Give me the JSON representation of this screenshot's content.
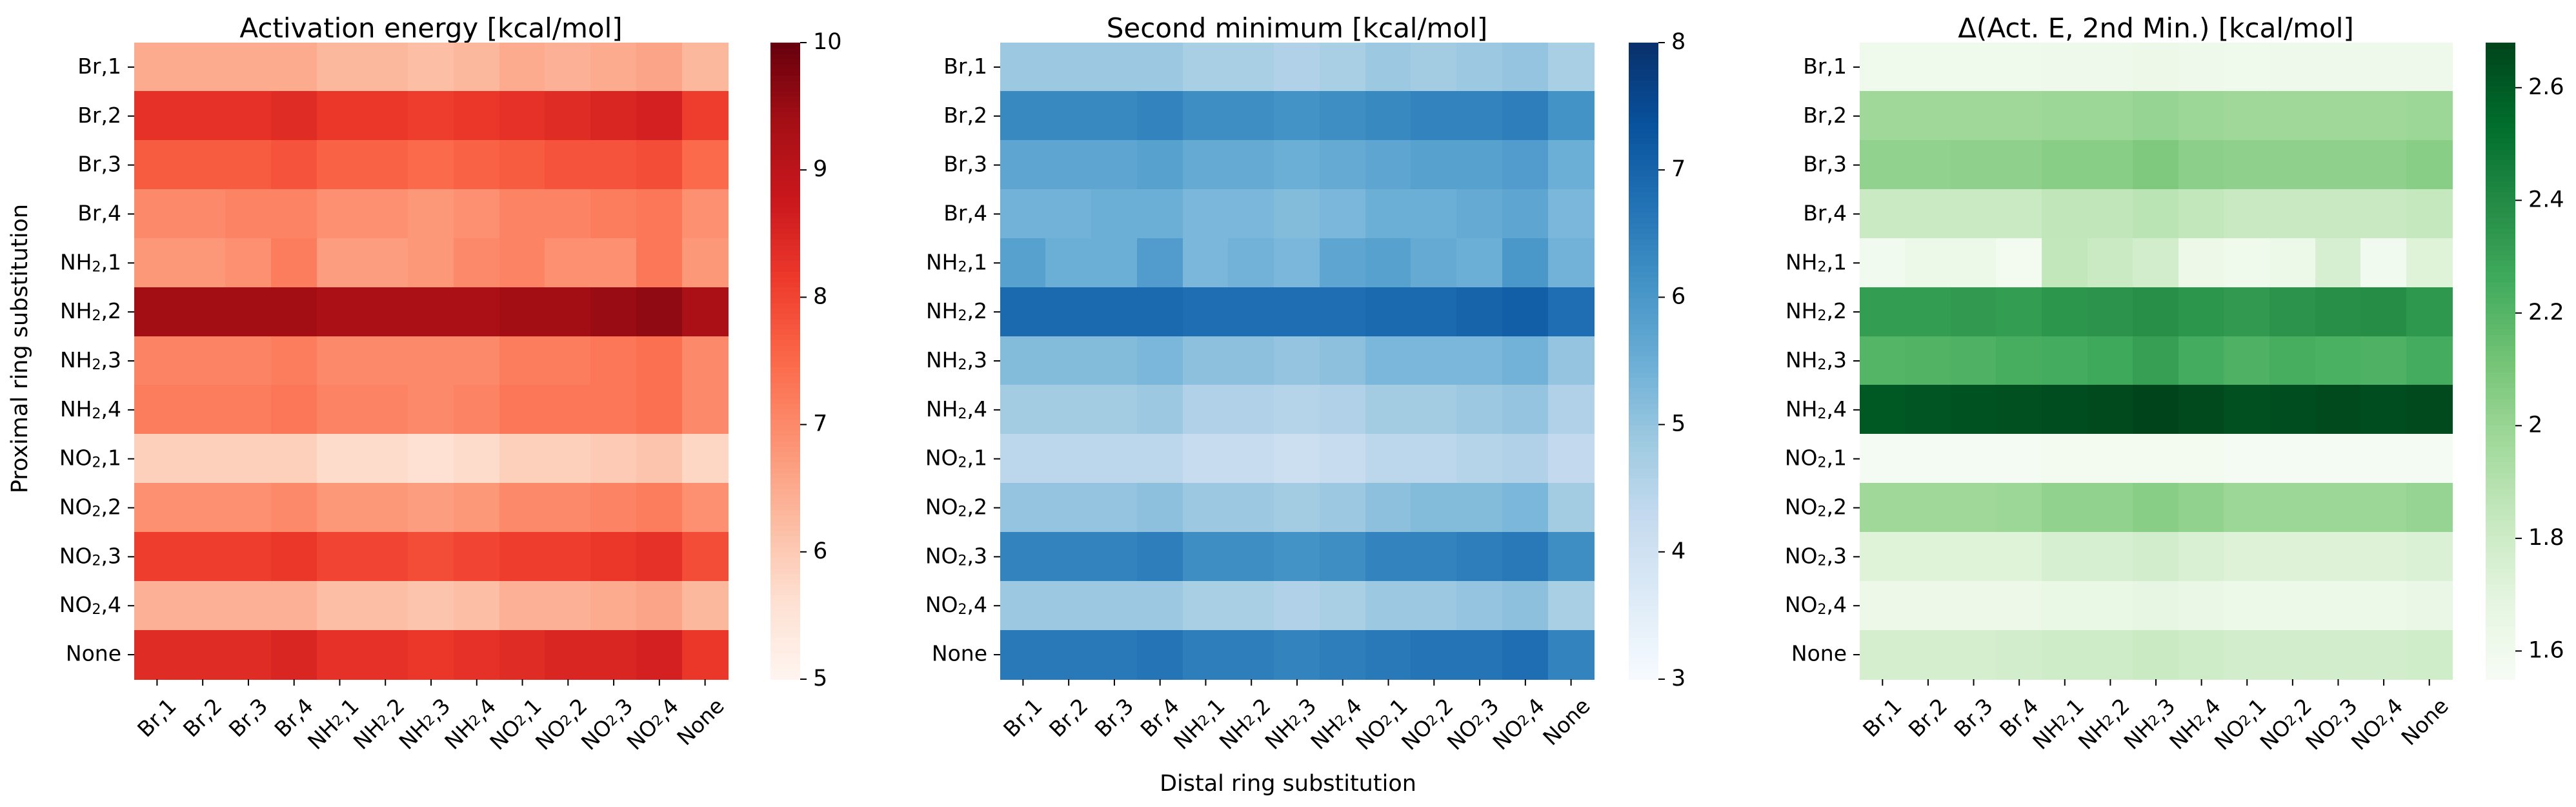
{
  "figure": {
    "ylabel": "Proximal ring substitution",
    "xlabel": "Distal ring substitution"
  },
  "chart_data": [
    {
      "type": "heatmap",
      "title": "Activation energy [kcal/mol]",
      "colormap": "Reds",
      "vlim": [
        5,
        10
      ],
      "colorbar_ticks": [
        5,
        6,
        7,
        8,
        9,
        10
      ],
      "row_labels": [
        {
          "base": "Br",
          "sub": "",
          "num": "1"
        },
        {
          "base": "Br",
          "sub": "",
          "num": "2"
        },
        {
          "base": "Br",
          "sub": "",
          "num": "3"
        },
        {
          "base": "Br",
          "sub": "",
          "num": "4"
        },
        {
          "base": "NH",
          "sub": "2",
          "num": "1"
        },
        {
          "base": "NH",
          "sub": "2",
          "num": "2"
        },
        {
          "base": "NH",
          "sub": "2",
          "num": "3"
        },
        {
          "base": "NH",
          "sub": "2",
          "num": "4"
        },
        {
          "base": "NO",
          "sub": "2",
          "num": "1"
        },
        {
          "base": "NO",
          "sub": "2",
          "num": "2"
        },
        {
          "base": "NO",
          "sub": "2",
          "num": "3"
        },
        {
          "base": "NO",
          "sub": "2",
          "num": "4"
        },
        {
          "base": "None",
          "sub": "",
          "num": ""
        }
      ],
      "col_labels": [
        {
          "base": "Br",
          "sub": "",
          "num": "1"
        },
        {
          "base": "Br",
          "sub": "",
          "num": "2"
        },
        {
          "base": "Br",
          "sub": "",
          "num": "3"
        },
        {
          "base": "Br",
          "sub": "",
          "num": "4"
        },
        {
          "base": "NH",
          "sub": "2",
          "num": "1"
        },
        {
          "base": "NH",
          "sub": "2",
          "num": "2"
        },
        {
          "base": "NH",
          "sub": "2",
          "num": "3"
        },
        {
          "base": "NH",
          "sub": "2",
          "num": "4"
        },
        {
          "base": "NO",
          "sub": "2",
          "num": "1"
        },
        {
          "base": "NO",
          "sub": "2",
          "num": "2"
        },
        {
          "base": "NO",
          "sub": "2",
          "num": "3"
        },
        {
          "base": "NO",
          "sub": "2",
          "num": "4"
        },
        {
          "base": "None",
          "sub": "",
          "num": ""
        }
      ],
      "values": [
        [
          6.5,
          6.5,
          6.5,
          6.5,
          6.3,
          6.3,
          6.2,
          6.3,
          6.5,
          6.4,
          6.5,
          6.6,
          6.3
        ],
        [
          8.3,
          8.3,
          8.3,
          8.4,
          8.2,
          8.2,
          8.1,
          8.2,
          8.3,
          8.4,
          8.5,
          8.6,
          8.1
        ],
        [
          7.7,
          7.7,
          7.7,
          7.8,
          7.6,
          7.6,
          7.5,
          7.6,
          7.7,
          7.8,
          7.8,
          7.9,
          7.5
        ],
        [
          7.0,
          7.0,
          7.1,
          7.1,
          6.9,
          6.9,
          6.8,
          6.9,
          7.1,
          7.1,
          7.2,
          7.3,
          6.9
        ],
        [
          6.8,
          6.8,
          6.9,
          7.2,
          6.7,
          6.7,
          6.8,
          7.0,
          7.1,
          6.9,
          6.9,
          7.3,
          6.8
        ],
        [
          9.4,
          9.4,
          9.4,
          9.4,
          9.3,
          9.3,
          9.3,
          9.3,
          9.4,
          9.4,
          9.5,
          9.6,
          9.3
        ],
        [
          7.1,
          7.1,
          7.1,
          7.2,
          7.0,
          7.0,
          7.0,
          7.0,
          7.2,
          7.2,
          7.3,
          7.4,
          7.0
        ],
        [
          7.2,
          7.2,
          7.2,
          7.3,
          7.1,
          7.1,
          7.0,
          7.1,
          7.3,
          7.3,
          7.3,
          7.4,
          7.0
        ],
        [
          5.9,
          5.9,
          5.9,
          5.9,
          5.7,
          5.7,
          5.6,
          5.7,
          5.9,
          5.9,
          6.0,
          6.1,
          5.8
        ],
        [
          6.9,
          6.9,
          6.9,
          7.0,
          6.8,
          6.8,
          6.7,
          6.8,
          7.0,
          7.0,
          7.1,
          7.2,
          6.9
        ],
        [
          8.1,
          8.1,
          8.1,
          8.2,
          8.0,
          8.0,
          7.9,
          8.0,
          8.1,
          8.1,
          8.2,
          8.3,
          7.9
        ],
        [
          6.4,
          6.4,
          6.4,
          6.4,
          6.2,
          6.2,
          6.1,
          6.2,
          6.4,
          6.4,
          6.5,
          6.6,
          6.3
        ],
        [
          8.4,
          8.4,
          8.4,
          8.5,
          8.3,
          8.3,
          8.2,
          8.3,
          8.4,
          8.5,
          8.5,
          8.6,
          8.2
        ]
      ]
    },
    {
      "type": "heatmap",
      "title": "Second minimum [kcal/mol]",
      "colormap": "Blues",
      "vlim": [
        3,
        8
      ],
      "colorbar_ticks": [
        3,
        4,
        5,
        6,
        7,
        8
      ],
      "row_labels": [
        {
          "base": "Br",
          "sub": "",
          "num": "1"
        },
        {
          "base": "Br",
          "sub": "",
          "num": "2"
        },
        {
          "base": "Br",
          "sub": "",
          "num": "3"
        },
        {
          "base": "Br",
          "sub": "",
          "num": "4"
        },
        {
          "base": "NH",
          "sub": "2",
          "num": "1"
        },
        {
          "base": "NH",
          "sub": "2",
          "num": "2"
        },
        {
          "base": "NH",
          "sub": "2",
          "num": "3"
        },
        {
          "base": "NH",
          "sub": "2",
          "num": "4"
        },
        {
          "base": "NO",
          "sub": "2",
          "num": "1"
        },
        {
          "base": "NO",
          "sub": "2",
          "num": "2"
        },
        {
          "base": "NO",
          "sub": "2",
          "num": "3"
        },
        {
          "base": "NO",
          "sub": "2",
          "num": "4"
        },
        {
          "base": "None",
          "sub": "",
          "num": ""
        }
      ],
      "col_labels": [
        {
          "base": "Br",
          "sub": "",
          "num": "1"
        },
        {
          "base": "Br",
          "sub": "",
          "num": "2"
        },
        {
          "base": "Br",
          "sub": "",
          "num": "3"
        },
        {
          "base": "Br",
          "sub": "",
          "num": "4"
        },
        {
          "base": "NH",
          "sub": "2",
          "num": "1"
        },
        {
          "base": "NH",
          "sub": "2",
          "num": "2"
        },
        {
          "base": "NH",
          "sub": "2",
          "num": "3"
        },
        {
          "base": "NH",
          "sub": "2",
          "num": "4"
        },
        {
          "base": "NO",
          "sub": "2",
          "num": "1"
        },
        {
          "base": "NO",
          "sub": "2",
          "num": "2"
        },
        {
          "base": "NO",
          "sub": "2",
          "num": "3"
        },
        {
          "base": "NO",
          "sub": "2",
          "num": "4"
        },
        {
          "base": "None",
          "sub": "",
          "num": ""
        }
      ],
      "values": [
        [
          4.9,
          4.9,
          4.9,
          4.9,
          4.7,
          4.7,
          4.6,
          4.7,
          4.9,
          4.8,
          4.9,
          5.0,
          4.7
        ],
        [
          6.3,
          6.3,
          6.3,
          6.4,
          6.2,
          6.2,
          6.1,
          6.2,
          6.3,
          6.4,
          6.4,
          6.5,
          6.1
        ],
        [
          5.7,
          5.7,
          5.7,
          5.8,
          5.6,
          5.6,
          5.5,
          5.6,
          5.7,
          5.8,
          5.8,
          5.9,
          5.5
        ],
        [
          5.4,
          5.4,
          5.5,
          5.5,
          5.3,
          5.3,
          5.2,
          5.3,
          5.5,
          5.5,
          5.6,
          5.7,
          5.3
        ],
        [
          5.8,
          5.5,
          5.5,
          5.9,
          5.3,
          5.4,
          5.3,
          5.7,
          5.8,
          5.6,
          5.5,
          6.0,
          5.4
        ],
        [
          6.9,
          6.9,
          6.9,
          6.9,
          6.8,
          6.8,
          6.8,
          6.8,
          6.9,
          6.9,
          7.0,
          7.1,
          6.8
        ],
        [
          5.2,
          5.2,
          5.2,
          5.3,
          5.1,
          5.1,
          5.0,
          5.1,
          5.3,
          5.3,
          5.3,
          5.4,
          5.0
        ],
        [
          4.8,
          4.8,
          4.8,
          4.9,
          4.6,
          4.6,
          4.5,
          4.6,
          4.8,
          4.8,
          4.9,
          5.0,
          4.6
        ],
        [
          4.4,
          4.4,
          4.4,
          4.4,
          4.2,
          4.2,
          4.1,
          4.2,
          4.4,
          4.4,
          4.5,
          4.6,
          4.3
        ],
        [
          5.0,
          5.0,
          5.0,
          5.1,
          4.9,
          4.9,
          4.8,
          4.9,
          5.1,
          5.2,
          5.2,
          5.3,
          4.8
        ],
        [
          6.4,
          6.4,
          6.4,
          6.5,
          6.2,
          6.2,
          6.1,
          6.2,
          6.4,
          6.4,
          6.5,
          6.6,
          6.2
        ],
        [
          4.9,
          4.9,
          4.9,
          4.9,
          4.7,
          4.7,
          4.6,
          4.7,
          4.9,
          4.9,
          5.0,
          5.1,
          4.7
        ],
        [
          6.6,
          6.6,
          6.6,
          6.7,
          6.5,
          6.5,
          6.4,
          6.5,
          6.6,
          6.7,
          6.7,
          6.8,
          6.4
        ]
      ]
    },
    {
      "type": "heatmap",
      "title": "Δ(Act. E, 2nd Min.) [kcal/mol]",
      "colormap": "Greens",
      "vlim": [
        1.55,
        2.68
      ],
      "colorbar_ticks": [
        1.6,
        1.8,
        2.0,
        2.2,
        2.4,
        2.6
      ],
      "row_labels": [
        {
          "base": "Br",
          "sub": "",
          "num": "1"
        },
        {
          "base": "Br",
          "sub": "",
          "num": "2"
        },
        {
          "base": "Br",
          "sub": "",
          "num": "3"
        },
        {
          "base": "Br",
          "sub": "",
          "num": "4"
        },
        {
          "base": "NH",
          "sub": "2",
          "num": "1"
        },
        {
          "base": "NH",
          "sub": "2",
          "num": "2"
        },
        {
          "base": "NH",
          "sub": "2",
          "num": "3"
        },
        {
          "base": "NH",
          "sub": "2",
          "num": "4"
        },
        {
          "base": "NO",
          "sub": "2",
          "num": "1"
        },
        {
          "base": "NO",
          "sub": "2",
          "num": "2"
        },
        {
          "base": "NO",
          "sub": "2",
          "num": "3"
        },
        {
          "base": "NO",
          "sub": "2",
          "num": "4"
        },
        {
          "base": "None",
          "sub": "",
          "num": ""
        }
      ],
      "col_labels": [
        {
          "base": "Br",
          "sub": "",
          "num": "1"
        },
        {
          "base": "Br",
          "sub": "",
          "num": "2"
        },
        {
          "base": "Br",
          "sub": "",
          "num": "3"
        },
        {
          "base": "Br",
          "sub": "",
          "num": "4"
        },
        {
          "base": "NH",
          "sub": "2",
          "num": "1"
        },
        {
          "base": "NH",
          "sub": "2",
          "num": "2"
        },
        {
          "base": "NH",
          "sub": "2",
          "num": "3"
        },
        {
          "base": "NH",
          "sub": "2",
          "num": "4"
        },
        {
          "base": "NO",
          "sub": "2",
          "num": "1"
        },
        {
          "base": "NO",
          "sub": "2",
          "num": "2"
        },
        {
          "base": "NO",
          "sub": "2",
          "num": "3"
        },
        {
          "base": "NO",
          "sub": "2",
          "num": "4"
        },
        {
          "base": "None",
          "sub": "",
          "num": ""
        }
      ],
      "values": [
        [
          1.61,
          1.61,
          1.61,
          1.61,
          1.62,
          1.62,
          1.63,
          1.62,
          1.61,
          1.62,
          1.62,
          1.62,
          1.62
        ],
        [
          1.98,
          1.98,
          1.98,
          1.98,
          1.99,
          1.99,
          2.01,
          1.99,
          1.98,
          1.98,
          1.98,
          1.98,
          1.99
        ],
        [
          2.02,
          2.02,
          2.03,
          2.03,
          2.05,
          2.05,
          2.08,
          2.04,
          2.03,
          2.03,
          2.03,
          2.03,
          2.05
        ],
        [
          1.82,
          1.82,
          1.82,
          1.82,
          1.86,
          1.86,
          1.88,
          1.85,
          1.83,
          1.83,
          1.83,
          1.83,
          1.84
        ],
        [
          1.6,
          1.64,
          1.64,
          1.58,
          1.85,
          1.82,
          1.78,
          1.63,
          1.61,
          1.64,
          1.76,
          1.6,
          1.72
        ],
        [
          2.32,
          2.32,
          2.33,
          2.32,
          2.35,
          2.36,
          2.38,
          2.35,
          2.33,
          2.36,
          2.38,
          2.39,
          2.34
        ],
        [
          2.2,
          2.21,
          2.22,
          2.24,
          2.25,
          2.27,
          2.31,
          2.25,
          2.22,
          2.24,
          2.23,
          2.22,
          2.25
        ],
        [
          2.61,
          2.62,
          2.63,
          2.64,
          2.65,
          2.66,
          2.68,
          2.66,
          2.64,
          2.65,
          2.66,
          2.65,
          2.66
        ],
        [
          1.57,
          1.57,
          1.57,
          1.57,
          1.58,
          1.58,
          1.58,
          1.58,
          1.57,
          1.57,
          1.57,
          1.57,
          1.57
        ],
        [
          1.98,
          1.98,
          1.98,
          1.99,
          2.02,
          2.02,
          2.05,
          2.02,
          1.99,
          1.99,
          1.99,
          1.99,
          2.01
        ],
        [
          1.72,
          1.72,
          1.72,
          1.72,
          1.76,
          1.76,
          1.78,
          1.75,
          1.73,
          1.73,
          1.73,
          1.73,
          1.74
        ],
        [
          1.63,
          1.63,
          1.63,
          1.63,
          1.66,
          1.66,
          1.68,
          1.65,
          1.64,
          1.64,
          1.64,
          1.64,
          1.65
        ],
        [
          1.77,
          1.77,
          1.77,
          1.78,
          1.8,
          1.8,
          1.82,
          1.8,
          1.78,
          1.78,
          1.78,
          1.78,
          1.79
        ]
      ]
    }
  ]
}
